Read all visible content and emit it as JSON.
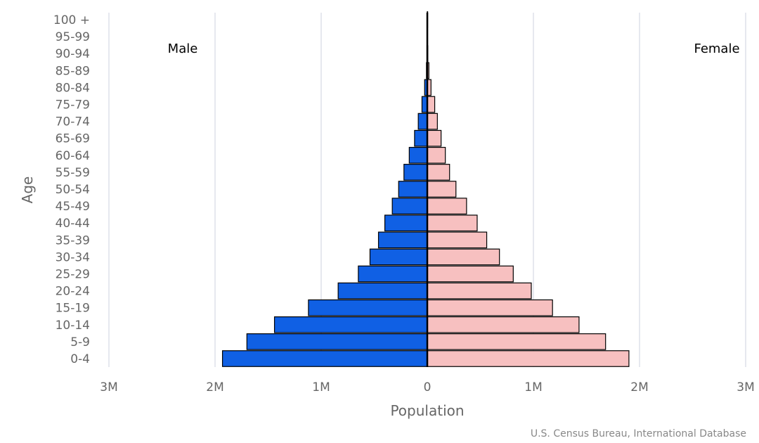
{
  "chart_data": {
    "type": "bar",
    "orientation": "horizontal-population-pyramid",
    "categories": [
      "0-4",
      "5-9",
      "10-14",
      "15-19",
      "20-24",
      "25-29",
      "30-34",
      "35-39",
      "40-44",
      "45-49",
      "50-54",
      "55-59",
      "60-64",
      "65-69",
      "70-74",
      "75-79",
      "80-84",
      "85-89",
      "90-94",
      "95-99",
      "100 +"
    ],
    "series": [
      {
        "name": "Male",
        "color": "#1060e4",
        "values": [
          1930000,
          1700000,
          1440000,
          1120000,
          840000,
          650000,
          540000,
          460000,
          400000,
          330000,
          270000,
          220000,
          170000,
          120000,
          85000,
          50000,
          25000,
          8000,
          3000,
          1000,
          200
        ]
      },
      {
        "name": "Female",
        "color": "#f7c0c0",
        "values": [
          1900000,
          1680000,
          1430000,
          1180000,
          980000,
          810000,
          680000,
          560000,
          470000,
          370000,
          270000,
          210000,
          170000,
          130000,
          95000,
          70000,
          35000,
          15000,
          5000,
          1500,
          300
        ]
      }
    ],
    "xlabel": "Population",
    "ylabel": "Age",
    "xlim": [
      -3000000,
      3000000
    ],
    "x_ticks": [
      -3000000,
      -2000000,
      -1000000,
      0,
      1000000,
      2000000,
      3000000
    ],
    "x_tick_labels": [
      "3M",
      "2M",
      "1M",
      "0",
      "1M",
      "2M",
      "3M"
    ],
    "left_label": "Male",
    "right_label": "Female",
    "grid": true,
    "credit": "U.S. Census Bureau, International Database"
  }
}
